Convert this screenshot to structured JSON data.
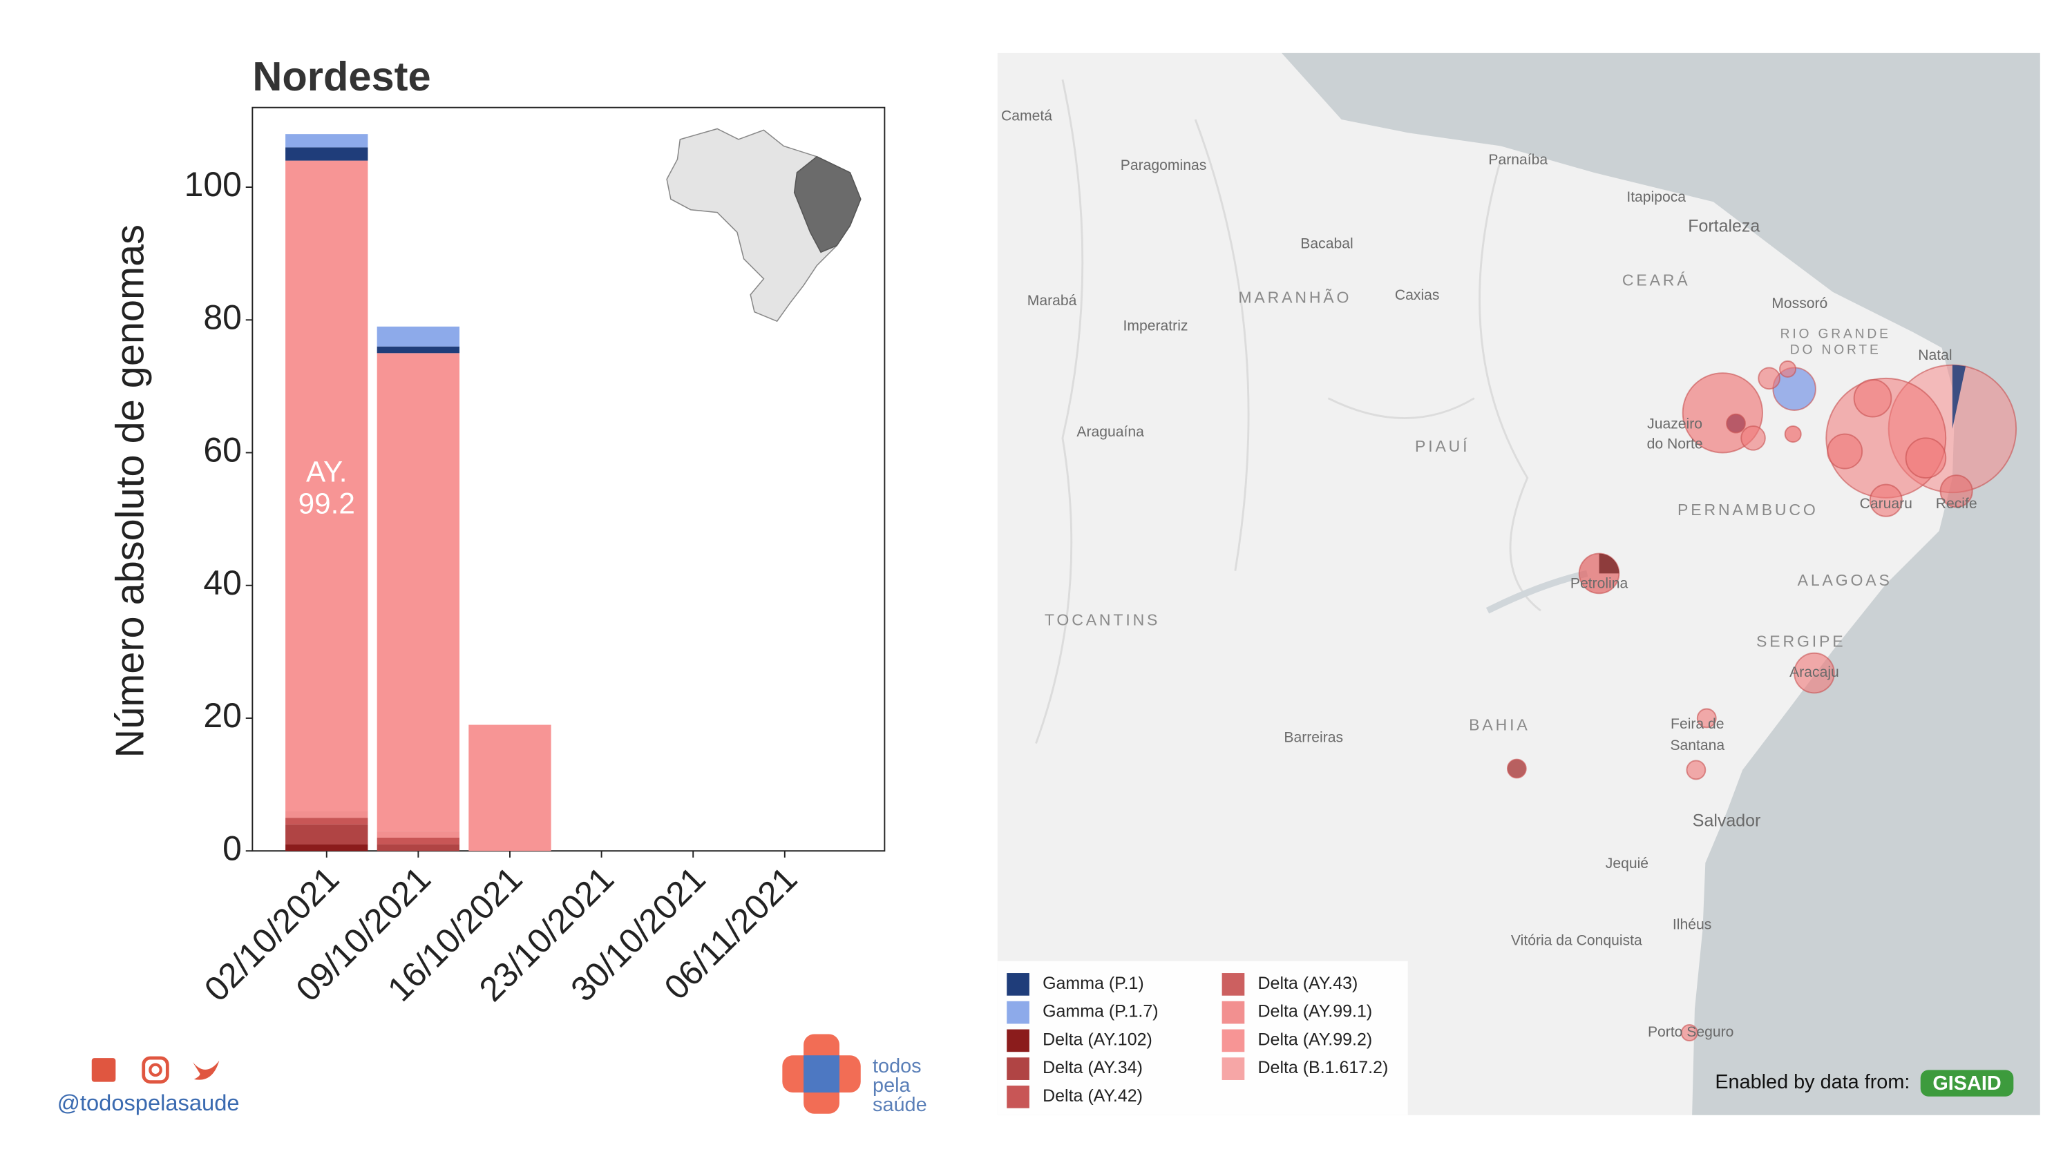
{
  "chart_data": {
    "type": "stacked-bar",
    "title": "Nordeste",
    "y_label": "Número absoluto de genomas",
    "categories": [
      "02/10/2021",
      "09/10/2021",
      "16/10/2021",
      "23/10/2021",
      "30/10/2021",
      "06/11/2021"
    ],
    "series": [
      {
        "name": "Delta (AY.102)",
        "color": "#8b1c1c",
        "values": [
          1,
          0,
          0,
          0,
          0,
          0
        ]
      },
      {
        "name": "Delta (AY.34)",
        "color": "#b04444",
        "values": [
          3,
          1,
          0,
          0,
          0,
          0
        ]
      },
      {
        "name": "Delta (AY.42)",
        "color": "#c85656",
        "values": [
          1,
          1,
          0,
          0,
          0,
          0
        ]
      },
      {
        "name": "Delta (AY.43)",
        "color": "#cc6060",
        "values": [
          0,
          0,
          0,
          0,
          0,
          0
        ]
      },
      {
        "name": "Delta (AY.99.1)",
        "color": "#f29090",
        "values": [
          1,
          1,
          0,
          0,
          0,
          0
        ]
      },
      {
        "name": "Delta (AY.99.2)",
        "color": "#f79595",
        "values": [
          98,
          72,
          19,
          0,
          0,
          0
        ]
      },
      {
        "name": "Delta (B.1.617.2)",
        "color": "#f6a6a6",
        "values": [
          0,
          0,
          0,
          0,
          0,
          0
        ]
      },
      {
        "name": "Gamma (P.1)",
        "color": "#1f3d7a",
        "values": [
          2,
          1,
          0,
          0,
          0,
          0
        ]
      },
      {
        "name": "Gamma (P.1.7)",
        "color": "#8daaea",
        "values": [
          2,
          3,
          0,
          0,
          0,
          0
        ]
      }
    ],
    "annotation": [
      "AY.",
      "99.2"
    ],
    "ylim": [
      0,
      112
    ],
    "yticks": [
      0,
      20,
      40,
      60,
      80,
      100
    ]
  },
  "map": {
    "places": [
      "Cametá",
      "Paragominas",
      "Parnaíba",
      "Itapipoca",
      "Fortaleza",
      "Bacabal",
      "MARANHÃO",
      "Caxias",
      "CEARÁ",
      "Mossoró",
      "Marabá",
      "Imperatriz",
      "RIO GRANDE",
      "DO NORTE",
      "Natal",
      "Araguaína",
      "Juazeiro",
      "do Norte",
      "PIAUÍ",
      "Caruaru",
      "Recife",
      "PERNAMBUCO",
      "Petrolina",
      "ALAGOAS",
      "TOCANTINS",
      "SERGIPE",
      "Aracaju",
      "Barreiras",
      "BAHIA",
      "Feira de",
      "Santana",
      "Salvador",
      "Jequié",
      "Ilhéus",
      "Vitória da Conquista",
      "Porto Seguro"
    ],
    "attribution": "Enabled by data from:",
    "badge": "GISAID"
  },
  "footer": {
    "handle": "@todospelasaude",
    "logo": [
      "todos",
      "pela",
      "saúde"
    ]
  }
}
